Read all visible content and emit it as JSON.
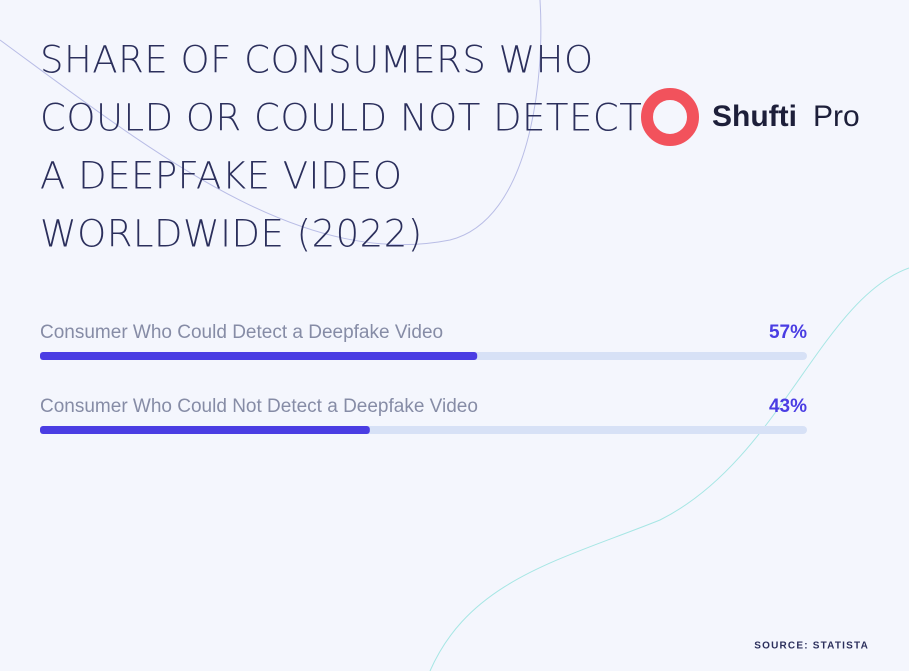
{
  "chart_data": {
    "type": "progress",
    "title": [
      "SHARE OF CONSUMERS WHO",
      "COULD OR COULD NOT DETECT",
      "A DEEPFAKE VIDEO",
      "WORLDWIDE (2022)"
    ],
    "brand": [
      "Shufti",
      "Pro"
    ],
    "categories": [
      "Consumer Who Could Detect a Deepfake Video",
      "Consumer Who Could Not Detect a Deepfake Video"
    ],
    "values": [
      57,
      43
    ],
    "value_labels": [
      "57%",
      "43%"
    ],
    "xlim": [
      0,
      100
    ],
    "color": "#4a3de3",
    "source": "SOURCE: STATISTA"
  }
}
